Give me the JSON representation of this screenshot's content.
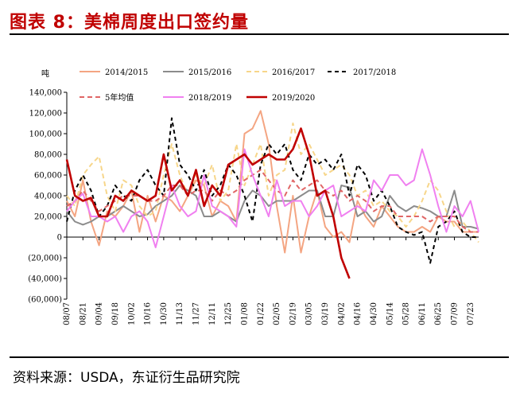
{
  "title": "图表 8：美棉周度出口签约量",
  "source": "资料来源：USDA，东证衍生品研究院",
  "colors": {
    "title": "#c00000",
    "s2014": "#f4a582",
    "s2015": "#8c8c8c",
    "s2016": "#f7d68a",
    "s2017": "#000000",
    "avg5": "#e06666",
    "s2018": "#f080f0",
    "s2019": "#c00000"
  },
  "chart_data": {
    "type": "line",
    "unit": "吨",
    "ylim": [
      -60000,
      140000
    ],
    "yticks": [
      -60000,
      -40000,
      -20000,
      0,
      20000,
      40000,
      60000,
      80000,
      100000,
      120000,
      140000
    ],
    "ytick_labels": [
      "(60,000)",
      "(40,000)",
      "(20,000)",
      "0",
      "20,000",
      "40,000",
      "60,000",
      "80,000",
      "100,000",
      "120,000",
      "140,000"
    ],
    "n_points": 52,
    "xtick_labels": [
      "08/07",
      "08/21",
      "09/04",
      "09/18",
      "10/02",
      "10/16",
      "10/30",
      "11/13",
      "11/27",
      "12/11",
      "12/25",
      "01/08",
      "01/22",
      "02/05",
      "02/19",
      "03/05",
      "03/19",
      "04/02",
      "04/16",
      "04/30",
      "05/14",
      "05/28",
      "06/11",
      "06/25",
      "07/09",
      "07/23"
    ],
    "legend": [
      "2014/2015",
      "2015/2016",
      "2016/2017",
      "2017/2018",
      "5年均值",
      "2018/2019",
      "2019/2020"
    ],
    "series": [
      {
        "name": "2014/2015",
        "color": "#f4a582",
        "dash": "",
        "values": [
          35000,
          20000,
          55000,
          15000,
          -8000,
          25000,
          20000,
          30000,
          45000,
          5000,
          40000,
          15000,
          40000,
          35000,
          25000,
          40000,
          55000,
          50000,
          20000,
          35000,
          30000,
          15000,
          100000,
          105000,
          122000,
          90000,
          30000,
          -15000,
          40000,
          -15000,
          20000,
          45000,
          10000,
          0,
          5000,
          -5000,
          35000,
          20000,
          10000,
          30000,
          20000,
          10000,
          5000,
          5000,
          10000,
          5000,
          20000,
          15000,
          15000,
          5000,
          5000,
          5000
        ]
      },
      {
        "name": "2015/2016",
        "color": "#8c8c8c",
        "dash": "",
        "values": [
          25000,
          15000,
          12000,
          15000,
          20000,
          20000,
          25000,
          30000,
          25000,
          20000,
          22000,
          30000,
          35000,
          40000,
          50000,
          45000,
          40000,
          20000,
          20000,
          25000,
          20000,
          15000,
          35000,
          45000,
          40000,
          30000,
          35000,
          35000,
          35000,
          40000,
          45000,
          45000,
          20000,
          20000,
          50000,
          48000,
          20000,
          25000,
          15000,
          20000,
          40000,
          30000,
          25000,
          30000,
          28000,
          25000,
          20000,
          20000,
          45000,
          10000,
          10000,
          8000
        ]
      },
      {
        "name": "2016/2017",
        "color": "#f7d68a",
        "dash": "6,4",
        "values": [
          40000,
          30000,
          60000,
          70000,
          78000,
          40000,
          25000,
          55000,
          50000,
          30000,
          20000,
          25000,
          60000,
          90000,
          60000,
          40000,
          60000,
          50000,
          70000,
          35000,
          45000,
          90000,
          50000,
          70000,
          90000,
          40000,
          60000,
          65000,
          110000,
          80000,
          90000,
          75000,
          60000,
          65000,
          70000,
          60000,
          40000,
          45000,
          30000,
          35000,
          25000,
          20000,
          10000,
          20000,
          35000,
          55000,
          45000,
          25000,
          10000,
          15000,
          5000,
          -5000
        ]
      },
      {
        "name": "2017/2018",
        "color": "#000000",
        "dash": "5,4",
        "values": [
          15000,
          45000,
          60000,
          45000,
          20000,
          30000,
          50000,
          40000,
          35000,
          55000,
          65000,
          50000,
          40000,
          115000,
          70000,
          60000,
          45000,
          65000,
          40000,
          50000,
          70000,
          60000,
          40000,
          15000,
          70000,
          90000,
          80000,
          90000,
          65000,
          55000,
          80000,
          70000,
          75000,
          65000,
          80000,
          40000,
          70000,
          60000,
          35000,
          45000,
          30000,
          10000,
          5000,
          2000,
          5000,
          -25000,
          10000,
          15000,
          25000,
          5000,
          0,
          0
        ]
      },
      {
        "name": "5年均值",
        "color": "#e06666",
        "dash": "6,4",
        "values": [
          30000,
          35000,
          45000,
          35000,
          25000,
          30000,
          35000,
          40000,
          40000,
          40000,
          35000,
          35000,
          40000,
          50000,
          50000,
          40000,
          45000,
          45000,
          35000,
          45000,
          40000,
          45000,
          55000,
          60000,
          65000,
          55000,
          45000,
          40000,
          55000,
          45000,
          50000,
          55000,
          45000,
          40000,
          45000,
          35000,
          40000,
          35000,
          25000,
          30000,
          30000,
          20000,
          20000,
          20000,
          20000,
          15000,
          20000,
          20000,
          20000,
          10000,
          5000,
          5000
        ]
      },
      {
        "name": "2018/2019",
        "color": "#f080f0",
        "dash": "",
        "values": [
          25000,
          35000,
          42000,
          20000,
          20000,
          15000,
          20000,
          5000,
          20000,
          25000,
          15000,
          -10000,
          20000,
          50000,
          30000,
          20000,
          25000,
          60000,
          30000,
          25000,
          20000,
          10000,
          85000,
          60000,
          40000,
          20000,
          55000,
          30000,
          35000,
          35000,
          20000,
          30000,
          45000,
          50000,
          20000,
          25000,
          30000,
          25000,
          55000,
          45000,
          60000,
          60000,
          50000,
          55000,
          85000,
          60000,
          30000,
          5000,
          30000,
          20000,
          35000,
          5000
        ]
      },
      {
        "name": "2019/2020",
        "color": "#c00000",
        "dash": "",
        "values": [
          75000,
          40000,
          35000,
          38000,
          20000,
          20000,
          40000,
          35000,
          45000,
          40000,
          35000,
          40000,
          80000,
          45000,
          55000,
          40000,
          65000,
          30000,
          50000,
          40000,
          70000,
          75000,
          80000,
          70000,
          75000,
          80000,
          75000,
          75000,
          85000,
          105000,
          80000,
          40000,
          45000,
          20000,
          -20000,
          -40000
        ]
      }
    ]
  }
}
